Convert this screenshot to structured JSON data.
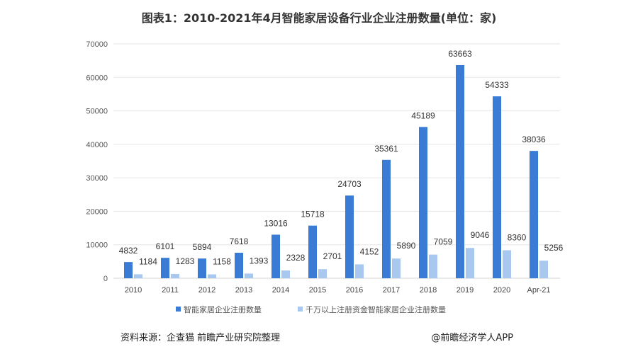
{
  "chart_data": {
    "type": "bar",
    "title": "图表1：2010-2021年4月智能家居设备行业企业注册数量(单位：家)",
    "categories": [
      "2010",
      "2011",
      "2012",
      "2013",
      "2014",
      "2015",
      "2016",
      "2017",
      "2018",
      "2019",
      "2020",
      "Apr-21"
    ],
    "series": [
      {
        "name": "智能家居企业注册数量",
        "color": "#3a7bd5",
        "values": [
          4832,
          6101,
          5894,
          7618,
          13016,
          15718,
          24703,
          35361,
          45189,
          63663,
          54333,
          38036
        ]
      },
      {
        "name": "千万以上注册资金智能家居企业注册数量",
        "color": "#a9c8ef",
        "values": [
          1184,
          1283,
          1158,
          1393,
          2328,
          2701,
          4152,
          5890,
          7059,
          9046,
          8360,
          5256
        ]
      }
    ],
    "ylim": [
      0,
      70000
    ],
    "yticks": [
      0,
      10000,
      20000,
      30000,
      40000,
      50000,
      60000,
      70000
    ],
    "grid": true,
    "legend": "bottom",
    "data_labels": true
  },
  "footer": {
    "source": "资料来源：企查猫 前瞻产业研究院整理",
    "credit": "@前瞻经济学人APP"
  }
}
